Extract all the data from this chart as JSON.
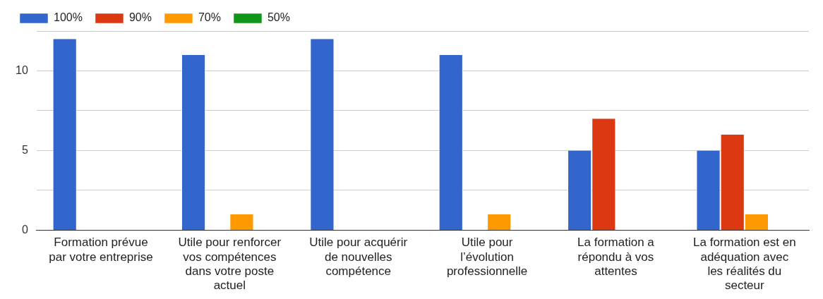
{
  "chart_data": {
    "type": "bar",
    "categories": [
      "Formation prévue par votre entreprise",
      "Utile pour renforcer vos compétences dans votre poste actuel",
      "Utile pour acquérir de nouvelles compétence",
      "Utile pour l’évolution professionnelle",
      "La formation a répondu à vos attentes",
      "La formation est en adéquation avec les réalités du secteur"
    ],
    "series": [
      {
        "name": "100%",
        "color": "#3366cc",
        "values": [
          12,
          11,
          12,
          11,
          5,
          5
        ]
      },
      {
        "name": "90%",
        "color": "#dc3912",
        "values": [
          0,
          0,
          0,
          0,
          7,
          6
        ]
      },
      {
        "name": "70%",
        "color": "#ff9900",
        "values": [
          0,
          1,
          0,
          1,
          0,
          1
        ]
      },
      {
        "name": "50%",
        "color": "#109618",
        "values": [
          0,
          0,
          0,
          0,
          0,
          0
        ]
      }
    ],
    "ylim": [
      0,
      12.5
    ],
    "yticks": [
      0,
      {
        "value": 2.5,
        "label": null
      },
      5,
      {
        "value": 7.5,
        "label": null
      },
      10,
      {
        "value": 12.5,
        "label": null
      }
    ],
    "grid": "y",
    "legend": "top left"
  }
}
